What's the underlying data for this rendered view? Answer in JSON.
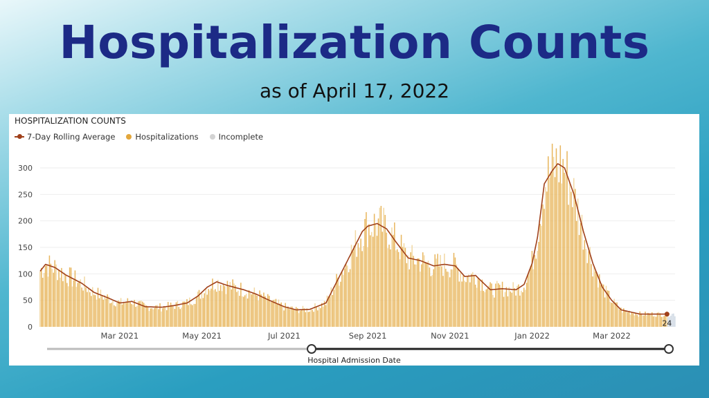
{
  "page": {
    "title": "Hospitalization Counts",
    "subtitle": "as of April 17, 2022"
  },
  "panel": {
    "title": "HOSPITALIZATION COUNTS",
    "slider_label": "Hospital Admission Date"
  },
  "legend": [
    {
      "label": "7-Day Rolling Average",
      "color": "#a0401a",
      "kind": "line"
    },
    {
      "label": "Hospitalizations",
      "color": "#e3a73c",
      "kind": "dot"
    },
    {
      "label": "Incomplete",
      "color": "#d3d3d3",
      "kind": "dot"
    }
  ],
  "colors": {
    "bar": "#e8b65e",
    "bar_light": "#f2d8a3",
    "incomplete": "#cfd8e3",
    "line": "#a0401a",
    "axis_text": "#444"
  },
  "chart_data": {
    "type": "bar",
    "x_start": "2021-01-01",
    "x_end": "2022-04-17",
    "xlabel": "Hospital Admission Date",
    "ylabel": "",
    "ylim": [
      0,
      330
    ],
    "yticks": [
      0,
      50,
      100,
      150,
      200,
      250,
      300
    ],
    "xtick_labels": [
      "Mar 2021",
      "May 2021",
      "Jul 2021",
      "Sep 2021",
      "Nov 2021",
      "Jan 2022",
      "Mar 2022"
    ],
    "xtick_dates": [
      "2021-03-01",
      "2021-05-01",
      "2021-07-01",
      "2021-09-01",
      "2021-11-01",
      "2022-01-01",
      "2022-03-01"
    ],
    "rolling_avg_anchors": [
      [
        "2021-01-01",
        105
      ],
      [
        "2021-01-05",
        118
      ],
      [
        "2021-01-12",
        112
      ],
      [
        "2021-01-20",
        98
      ],
      [
        "2021-02-01",
        82
      ],
      [
        "2021-02-10",
        65
      ],
      [
        "2021-02-20",
        55
      ],
      [
        "2021-03-01",
        45
      ],
      [
        "2021-03-10",
        48
      ],
      [
        "2021-03-20",
        38
      ],
      [
        "2021-04-01",
        37
      ],
      [
        "2021-04-10",
        40
      ],
      [
        "2021-04-20",
        45
      ],
      [
        "2021-04-28",
        58
      ],
      [
        "2021-05-05",
        75
      ],
      [
        "2021-05-12",
        85
      ],
      [
        "2021-05-20",
        78
      ],
      [
        "2021-06-01",
        70
      ],
      [
        "2021-06-10",
        62
      ],
      [
        "2021-06-20",
        50
      ],
      [
        "2021-07-01",
        38
      ],
      [
        "2021-07-10",
        32
      ],
      [
        "2021-07-20",
        33
      ],
      [
        "2021-08-01",
        45
      ],
      [
        "2021-08-05",
        65
      ],
      [
        "2021-08-12",
        100
      ],
      [
        "2021-08-20",
        140
      ],
      [
        "2021-08-28",
        180
      ],
      [
        "2021-09-01",
        190
      ],
      [
        "2021-09-08",
        195
      ],
      [
        "2021-09-15",
        185
      ],
      [
        "2021-09-22",
        160
      ],
      [
        "2021-10-01",
        130
      ],
      [
        "2021-10-10",
        125
      ],
      [
        "2021-10-20",
        115
      ],
      [
        "2021-10-28",
        118
      ],
      [
        "2021-11-05",
        115
      ],
      [
        "2021-11-12",
        95
      ],
      [
        "2021-11-20",
        97
      ],
      [
        "2021-12-01",
        70
      ],
      [
        "2021-12-10",
        72
      ],
      [
        "2021-12-20",
        70
      ],
      [
        "2021-12-26",
        80
      ],
      [
        "2022-01-01",
        120
      ],
      [
        "2022-01-05",
        170
      ],
      [
        "2022-01-10",
        270
      ],
      [
        "2022-01-16",
        295
      ],
      [
        "2022-01-20",
        308
      ],
      [
        "2022-01-25",
        300
      ],
      [
        "2022-02-01",
        250
      ],
      [
        "2022-02-08",
        180
      ],
      [
        "2022-02-15",
        120
      ],
      [
        "2022-02-22",
        75
      ],
      [
        "2022-03-01",
        50
      ],
      [
        "2022-03-08",
        32
      ],
      [
        "2022-03-15",
        28
      ],
      [
        "2022-03-22",
        24
      ],
      [
        "2022-04-01",
        24
      ],
      [
        "2022-04-11",
        24
      ]
    ],
    "last_value_label": "24",
    "incomplete_from": "2022-04-12"
  }
}
